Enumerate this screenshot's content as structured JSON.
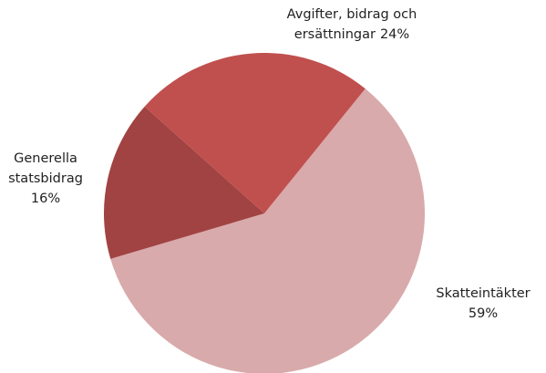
{
  "chart_data": {
    "type": "pie",
    "categories": [
      [
        "Skatteintäkter"
      ],
      [
        "Generella",
        "statsbidrag"
      ],
      [
        "Avgifter, bidrag och",
        "ersättningar"
      ]
    ],
    "values": [
      59,
      16,
      24
    ],
    "value_labels": [
      "59%",
      "16%",
      "24%"
    ],
    "colors": [
      "#d9aaab",
      "#a04342",
      "#c0504e"
    ]
  }
}
